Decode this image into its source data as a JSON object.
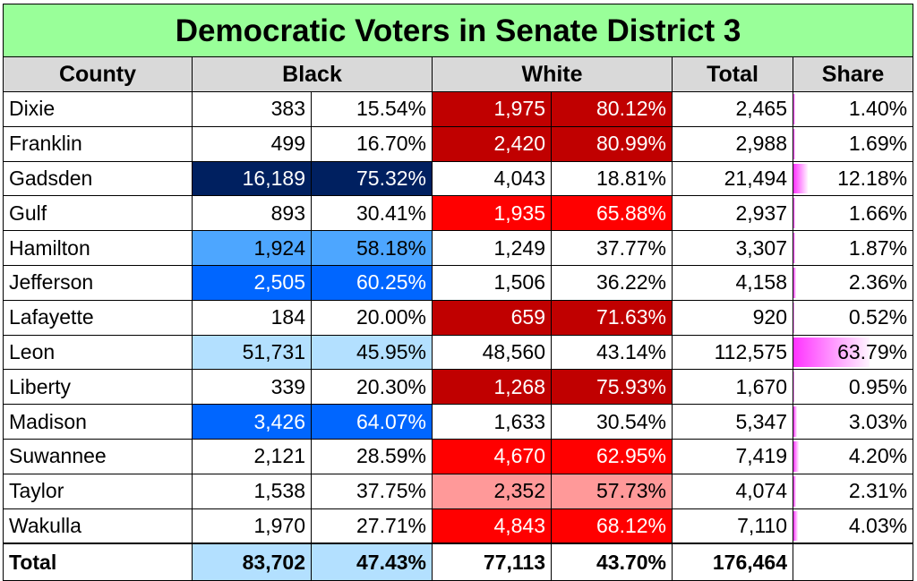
{
  "title": "Democratic Voters in Senate District 3",
  "headers": {
    "county": "County",
    "black": "Black",
    "white": "White",
    "total": "Total",
    "share": "Share"
  },
  "colors": {
    "title_bg": "#99ff99",
    "header_bg": "#d9d9d9",
    "share_bar": "#ff33ff"
  },
  "rows": [
    {
      "county": "Dixie",
      "black_n": "383",
      "black_p": "15.54%",
      "black_bg": "#ffffff",
      "black_light": false,
      "white_n": "1,975",
      "white_p": "80.12%",
      "white_bg": "#c00000",
      "white_light": true,
      "total": "2,465",
      "share": "1.40%",
      "share_frac": 0.014
    },
    {
      "county": "Franklin",
      "black_n": "499",
      "black_p": "16.70%",
      "black_bg": "#ffffff",
      "black_light": false,
      "white_n": "2,420",
      "white_p": "80.99%",
      "white_bg": "#c00000",
      "white_light": true,
      "total": "2,988",
      "share": "1.69%",
      "share_frac": 0.0169
    },
    {
      "county": "Gadsden",
      "black_n": "16,189",
      "black_p": "75.32%",
      "black_bg": "#002060",
      "black_light": true,
      "white_n": "4,043",
      "white_p": "18.81%",
      "white_bg": "#ffffff",
      "white_light": false,
      "total": "21,494",
      "share": "12.18%",
      "share_frac": 0.1218
    },
    {
      "county": "Gulf",
      "black_n": "893",
      "black_p": "30.41%",
      "black_bg": "#ffffff",
      "black_light": false,
      "white_n": "1,935",
      "white_p": "65.88%",
      "white_bg": "#ff0000",
      "white_light": true,
      "total": "2,937",
      "share": "1.66%",
      "share_frac": 0.0166
    },
    {
      "county": "Hamilton",
      "black_n": "1,924",
      "black_p": "58.18%",
      "black_bg": "#4da6ff",
      "black_light": false,
      "white_n": "1,249",
      "white_p": "37.77%",
      "white_bg": "#ffffff",
      "white_light": false,
      "total": "3,307",
      "share": "1.87%",
      "share_frac": 0.0187
    },
    {
      "county": "Jefferson",
      "black_n": "2,505",
      "black_p": "60.25%",
      "black_bg": "#0066ff",
      "black_light": true,
      "white_n": "1,506",
      "white_p": "36.22%",
      "white_bg": "#ffffff",
      "white_light": false,
      "total": "4,158",
      "share": "2.36%",
      "share_frac": 0.0236
    },
    {
      "county": "Lafayette",
      "black_n": "184",
      "black_p": "20.00%",
      "black_bg": "#ffffff",
      "black_light": false,
      "white_n": "659",
      "white_p": "71.63%",
      "white_bg": "#c00000",
      "white_light": true,
      "total": "920",
      "share": "0.52%",
      "share_frac": 0.0052
    },
    {
      "county": "Leon",
      "black_n": "51,731",
      "black_p": "45.95%",
      "black_bg": "#b3e0ff",
      "black_light": false,
      "white_n": "48,560",
      "white_p": "43.14%",
      "white_bg": "#ffffff",
      "white_light": false,
      "total": "112,575",
      "share": "63.79%",
      "share_frac": 0.6379
    },
    {
      "county": "Liberty",
      "black_n": "339",
      "black_p": "20.30%",
      "black_bg": "#ffffff",
      "black_light": false,
      "white_n": "1,268",
      "white_p": "75.93%",
      "white_bg": "#c00000",
      "white_light": true,
      "total": "1,670",
      "share": "0.95%",
      "share_frac": 0.0095
    },
    {
      "county": "Madison",
      "black_n": "3,426",
      "black_p": "64.07%",
      "black_bg": "#0066ff",
      "black_light": true,
      "white_n": "1,633",
      "white_p": "30.54%",
      "white_bg": "#ffffff",
      "white_light": false,
      "total": "5,347",
      "share": "3.03%",
      "share_frac": 0.0303
    },
    {
      "county": "Suwannee",
      "black_n": "2,121",
      "black_p": "28.59%",
      "black_bg": "#ffffff",
      "black_light": false,
      "white_n": "4,670",
      "white_p": "62.95%",
      "white_bg": "#ff0000",
      "white_light": true,
      "total": "7,419",
      "share": "4.20%",
      "share_frac": 0.042
    },
    {
      "county": "Taylor",
      "black_n": "1,538",
      "black_p": "37.75%",
      "black_bg": "#ffffff",
      "black_light": false,
      "white_n": "2,352",
      "white_p": "57.73%",
      "white_bg": "#ff9999",
      "white_light": false,
      "total": "4,074",
      "share": "2.31%",
      "share_frac": 0.0231
    },
    {
      "county": "Wakulla",
      "black_n": "1,970",
      "black_p": "27.71%",
      "black_bg": "#ffffff",
      "black_light": false,
      "white_n": "4,843",
      "white_p": "68.12%",
      "white_bg": "#ff0000",
      "white_light": true,
      "total": "7,110",
      "share": "4.03%",
      "share_frac": 0.0403
    }
  ],
  "total_row": {
    "label": "Total",
    "black_n": "83,702",
    "black_p": "47.43%",
    "black_bg": "#b3e0ff",
    "white_n": "77,113",
    "white_p": "43.70%",
    "total": "176,464",
    "share": ""
  }
}
